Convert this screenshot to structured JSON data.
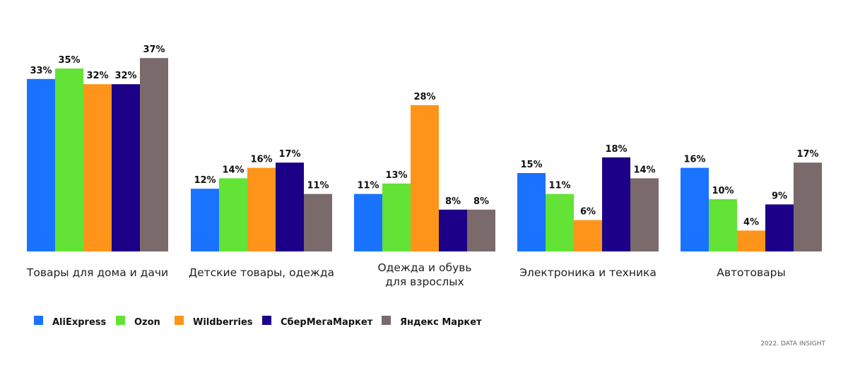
{
  "chart_data": {
    "type": "bar",
    "categories": [
      [
        "Товары для дома и дачи"
      ],
      [
        "Детские товары, одежда"
      ],
      [
        "Одежда и обувь",
        "для взрослых"
      ],
      [
        "Электроника и техника"
      ],
      [
        "Автотовары"
      ]
    ],
    "series": [
      {
        "name": "AliExpress",
        "color": "#1a73ff",
        "values": [
          33,
          12,
          11,
          15,
          16
        ]
      },
      {
        "name": "Ozon",
        "color": "#62e335",
        "values": [
          35,
          14,
          13,
          11,
          10
        ]
      },
      {
        "name": "Wildberries",
        "color": "#ff941a",
        "values": [
          32,
          16,
          28,
          6,
          4
        ]
      },
      {
        "name": "СберМегаМаркет",
        "color": "#1c0087",
        "values": [
          32,
          17,
          8,
          18,
          9
        ]
      },
      {
        "name": "Яндекс Маркет",
        "color": "#7a6a6c",
        "values": [
          37,
          11,
          8,
          14,
          17
        ]
      }
    ],
    "value_suffix": "%",
    "ylim": [
      0,
      37
    ],
    "grid": false,
    "legend_position": "bottom-left"
  },
  "source": "2022. DATA INSIGHT"
}
